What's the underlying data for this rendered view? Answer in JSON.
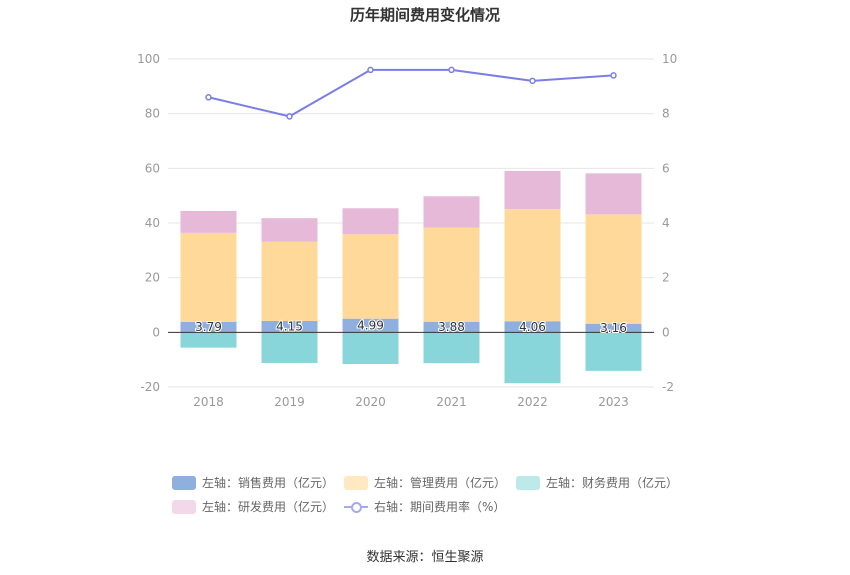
{
  "chart_data": {
    "type": "bar",
    "title": "历年期间费用变化情况",
    "categories": [
      "2018",
      "2019",
      "2020",
      "2021",
      "2022",
      "2023"
    ],
    "y_left": {
      "min": -20,
      "max": 100,
      "ticks": [
        -20,
        0,
        20,
        40,
        60,
        80,
        100
      ]
    },
    "y_right": {
      "min": -2,
      "max": 10,
      "ticks": [
        -2,
        0,
        2,
        4,
        6,
        8,
        10
      ]
    },
    "series": [
      {
        "name": "左轴：销售费用（亿元）",
        "axis": "left",
        "type": "bar",
        "color": "#8fb0de",
        "values": [
          3.79,
          4.15,
          4.99,
          3.88,
          4.06,
          3.16
        ],
        "labels": [
          "3.79",
          "4.15",
          "4.99",
          "3.88",
          "4.06",
          "3.16"
        ]
      },
      {
        "name": "左轴：管理费用（亿元）",
        "axis": "left",
        "type": "bar",
        "color": "#ffd99a",
        "legend_color": "#ffe8c2",
        "values": [
          32.6,
          29.0,
          30.9,
          34.4,
          41.0,
          40.0
        ]
      },
      {
        "name": "左轴：财务费用（亿元）",
        "axis": "left",
        "type": "bar",
        "color": "#88d6da",
        "legend_color": "#bde9eb",
        "values": [
          -5.6,
          -11.2,
          -11.6,
          -11.3,
          -18.6,
          -14.1
        ]
      },
      {
        "name": "左轴：研发费用（亿元）",
        "axis": "left",
        "type": "bar",
        "color": "#e6b9d8",
        "legend_color": "#f2d9ea",
        "values": [
          8.0,
          8.6,
          9.5,
          11.5,
          14.0,
          15.0
        ]
      },
      {
        "name": "右轴：期间费用率（%）",
        "axis": "right",
        "type": "line",
        "color": "#7b7fe3",
        "values": [
          8.6,
          7.9,
          9.6,
          9.6,
          9.2,
          9.4
        ]
      }
    ]
  },
  "source": "数据来源：恒生聚源"
}
